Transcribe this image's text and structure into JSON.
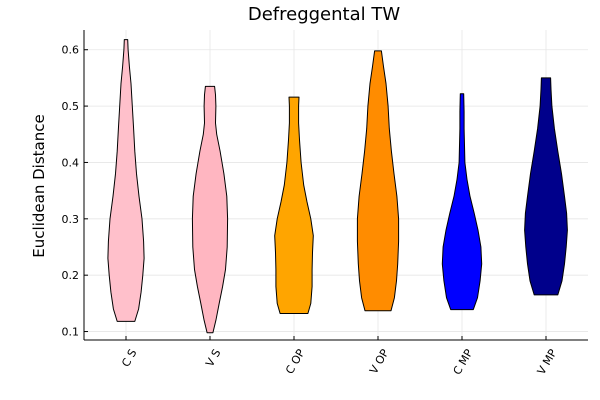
{
  "chart_data": {
    "type": "violin",
    "title": "Defreggental TW",
    "xlabel": "",
    "ylabel": "Euclidean Distance",
    "ylim": [
      0.085,
      0.635
    ],
    "yticks": [
      0.1,
      0.2,
      0.3,
      0.4,
      0.5,
      0.6
    ],
    "ytick_labels": [
      "0.1",
      "0.2",
      "0.3",
      "0.4",
      "0.5",
      "0.6"
    ],
    "grid": true,
    "legend": "none",
    "categories": [
      "C S",
      "V S",
      "C OP",
      "V OP",
      "C MP",
      "V MP"
    ],
    "series": [
      {
        "color": "#FFC0CB",
        "min": 0.118,
        "max": 0.618,
        "profile": [
          [
            0.118,
            0.21
          ],
          [
            0.14,
            0.3
          ],
          [
            0.17,
            0.36
          ],
          [
            0.2,
            0.4
          ],
          [
            0.23,
            0.43
          ],
          [
            0.26,
            0.42
          ],
          [
            0.3,
            0.38
          ],
          [
            0.34,
            0.31
          ],
          [
            0.38,
            0.25
          ],
          [
            0.42,
            0.21
          ],
          [
            0.46,
            0.18
          ],
          [
            0.5,
            0.15
          ],
          [
            0.54,
            0.12
          ],
          [
            0.57,
            0.08
          ],
          [
            0.6,
            0.05
          ],
          [
            0.618,
            0.04
          ]
        ]
      },
      {
        "color": "#FFB6C1",
        "min": 0.098,
        "max": 0.535,
        "profile": [
          [
            0.098,
            0.07
          ],
          [
            0.12,
            0.14
          ],
          [
            0.15,
            0.22
          ],
          [
            0.18,
            0.3
          ],
          [
            0.21,
            0.37
          ],
          [
            0.25,
            0.41
          ],
          [
            0.3,
            0.42
          ],
          [
            0.34,
            0.4
          ],
          [
            0.38,
            0.33
          ],
          [
            0.42,
            0.24
          ],
          [
            0.45,
            0.16
          ],
          [
            0.47,
            0.13
          ],
          [
            0.5,
            0.14
          ],
          [
            0.52,
            0.13
          ],
          [
            0.535,
            0.11
          ]
        ]
      },
      {
        "color": "#FFA500",
        "min": 0.132,
        "max": 0.516,
        "profile": [
          [
            0.132,
            0.33
          ],
          [
            0.15,
            0.4
          ],
          [
            0.18,
            0.43
          ],
          [
            0.21,
            0.43
          ],
          [
            0.24,
            0.44
          ],
          [
            0.27,
            0.46
          ],
          [
            0.3,
            0.4
          ],
          [
            0.33,
            0.31
          ],
          [
            0.36,
            0.23
          ],
          [
            0.4,
            0.17
          ],
          [
            0.44,
            0.13
          ],
          [
            0.47,
            0.11
          ],
          [
            0.5,
            0.11
          ],
          [
            0.516,
            0.12
          ]
        ]
      },
      {
        "color": "#FF8C00",
        "min": 0.137,
        "max": 0.598,
        "profile": [
          [
            0.137,
            0.31
          ],
          [
            0.16,
            0.39
          ],
          [
            0.19,
            0.44
          ],
          [
            0.22,
            0.47
          ],
          [
            0.26,
            0.49
          ],
          [
            0.3,
            0.49
          ],
          [
            0.34,
            0.45
          ],
          [
            0.38,
            0.38
          ],
          [
            0.42,
            0.32
          ],
          [
            0.46,
            0.27
          ],
          [
            0.5,
            0.24
          ],
          [
            0.54,
            0.19
          ],
          [
            0.57,
            0.13
          ],
          [
            0.598,
            0.08
          ]
        ]
      },
      {
        "color": "#0000FF",
        "min": 0.139,
        "max": 0.522,
        "profile": [
          [
            0.139,
            0.27
          ],
          [
            0.16,
            0.37
          ],
          [
            0.19,
            0.43
          ],
          [
            0.22,
            0.47
          ],
          [
            0.25,
            0.45
          ],
          [
            0.28,
            0.38
          ],
          [
            0.31,
            0.29
          ],
          [
            0.34,
            0.19
          ],
          [
            0.37,
            0.12
          ],
          [
            0.4,
            0.07
          ],
          [
            0.43,
            0.06
          ],
          [
            0.46,
            0.05
          ],
          [
            0.49,
            0.05
          ],
          [
            0.522,
            0.04
          ]
        ]
      },
      {
        "color": "#00008B",
        "min": 0.165,
        "max": 0.55,
        "profile": [
          [
            0.165,
            0.28
          ],
          [
            0.19,
            0.38
          ],
          [
            0.22,
            0.44
          ],
          [
            0.25,
            0.48
          ],
          [
            0.28,
            0.51
          ],
          [
            0.31,
            0.49
          ],
          [
            0.34,
            0.44
          ],
          [
            0.38,
            0.37
          ],
          [
            0.42,
            0.28
          ],
          [
            0.46,
            0.2
          ],
          [
            0.5,
            0.14
          ],
          [
            0.53,
            0.12
          ],
          [
            0.55,
            0.11
          ]
        ]
      }
    ]
  }
}
